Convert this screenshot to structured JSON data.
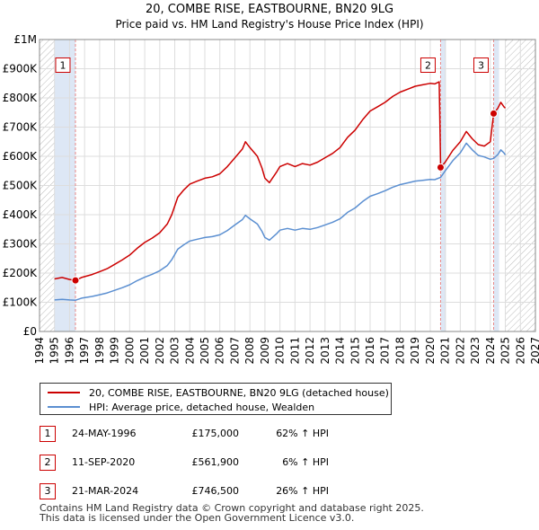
{
  "chart_data": {
    "type": "line",
    "title": "20, COMBE RISE, EASTBOURNE, BN20 9LG",
    "subtitle": "Price paid vs. HM Land Registry's House Price Index (HPI)",
    "xlim": [
      1994,
      2027
    ],
    "ylim": [
      0,
      1000000
    ],
    "x_ticks": [
      1994,
      1995,
      1996,
      1997,
      1998,
      1999,
      2000,
      2001,
      2002,
      2003,
      2004,
      2005,
      2006,
      2007,
      2008,
      2009,
      2010,
      2011,
      2012,
      2013,
      2014,
      2015,
      2016,
      2017,
      2018,
      2019,
      2020,
      2021,
      2022,
      2023,
      2024,
      2025,
      2026,
      2027
    ],
    "y_ticks": [
      {
        "value": 0,
        "label": "£0"
      },
      {
        "value": 100000,
        "label": "£100K"
      },
      {
        "value": 200000,
        "label": "£200K"
      },
      {
        "value": 300000,
        "label": "£300K"
      },
      {
        "value": 400000,
        "label": "£400K"
      },
      {
        "value": 500000,
        "label": "£500K"
      },
      {
        "value": 600000,
        "label": "£600K"
      },
      {
        "value": 700000,
        "label": "£700K"
      },
      {
        "value": 800000,
        "label": "£800K"
      },
      {
        "value": 900000,
        "label": "£900K"
      },
      {
        "value": 1000000,
        "label": "£1M"
      }
    ],
    "data_start": 1995.0,
    "data_end": 2025.0,
    "series": [
      {
        "name": "20, COMBE RISE, EASTBOURNE, BN20 9LG (detached house)",
        "color": "#cc0000",
        "points": [
          [
            1995.0,
            180000
          ],
          [
            1995.5,
            185000
          ],
          [
            1996.0,
            178000
          ],
          [
            1996.4,
            175000
          ],
          [
            1996.8,
            185000
          ],
          [
            1997.5,
            195000
          ],
          [
            1998.0,
            205000
          ],
          [
            1998.5,
            215000
          ],
          [
            1999.0,
            230000
          ],
          [
            1999.5,
            245000
          ],
          [
            2000.0,
            262000
          ],
          [
            2000.5,
            285000
          ],
          [
            2001.0,
            305000
          ],
          [
            2001.5,
            320000
          ],
          [
            2002.0,
            338000
          ],
          [
            2002.5,
            368000
          ],
          [
            2002.8,
            400000
          ],
          [
            2003.2,
            460000
          ],
          [
            2003.6,
            485000
          ],
          [
            2004.0,
            505000
          ],
          [
            2004.5,
            515000
          ],
          [
            2005.0,
            525000
          ],
          [
            2005.5,
            530000
          ],
          [
            2006.0,
            540000
          ],
          [
            2006.5,
            565000
          ],
          [
            2007.0,
            595000
          ],
          [
            2007.5,
            625000
          ],
          [
            2007.7,
            650000
          ],
          [
            2008.0,
            630000
          ],
          [
            2008.5,
            600000
          ],
          [
            2008.8,
            560000
          ],
          [
            2009.0,
            525000
          ],
          [
            2009.3,
            510000
          ],
          [
            2009.8,
            548000
          ],
          [
            2010.0,
            565000
          ],
          [
            2010.5,
            575000
          ],
          [
            2011.0,
            565000
          ],
          [
            2011.5,
            575000
          ],
          [
            2012.0,
            570000
          ],
          [
            2012.5,
            580000
          ],
          [
            2013.0,
            595000
          ],
          [
            2013.5,
            610000
          ],
          [
            2014.0,
            630000
          ],
          [
            2014.5,
            665000
          ],
          [
            2015.0,
            690000
          ],
          [
            2015.5,
            725000
          ],
          [
            2016.0,
            755000
          ],
          [
            2016.5,
            770000
          ],
          [
            2017.0,
            785000
          ],
          [
            2017.5,
            805000
          ],
          [
            2018.0,
            820000
          ],
          [
            2018.5,
            830000
          ],
          [
            2019.0,
            840000
          ],
          [
            2019.5,
            845000
          ],
          [
            2020.0,
            850000
          ],
          [
            2020.3,
            848000
          ],
          [
            2020.6,
            855000
          ],
          [
            2020.69,
            561900
          ],
          [
            2021.0,
            580000
          ],
          [
            2021.5,
            620000
          ],
          [
            2022.0,
            650000
          ],
          [
            2022.4,
            685000
          ],
          [
            2022.8,
            660000
          ],
          [
            2023.2,
            640000
          ],
          [
            2023.6,
            635000
          ],
          [
            2024.0,
            650000
          ],
          [
            2024.22,
            746500
          ],
          [
            2024.5,
            765000
          ],
          [
            2024.7,
            785000
          ],
          [
            2024.9,
            770000
          ],
          [
            2025.0,
            765000
          ]
        ]
      },
      {
        "name": "HPI: Average price, detached house, Wealden",
        "color": "#5b8fd1",
        "points": [
          [
            1995.0,
            108000
          ],
          [
            1995.5,
            110000
          ],
          [
            1996.0,
            108000
          ],
          [
            1996.4,
            107000
          ],
          [
            1996.8,
            114000
          ],
          [
            1997.5,
            120000
          ],
          [
            1998.0,
            126000
          ],
          [
            1998.5,
            132000
          ],
          [
            1999.0,
            141000
          ],
          [
            1999.5,
            150000
          ],
          [
            2000.0,
            160000
          ],
          [
            2000.5,
            174000
          ],
          [
            2001.0,
            186000
          ],
          [
            2001.5,
            196000
          ],
          [
            2002.0,
            208000
          ],
          [
            2002.5,
            226000
          ],
          [
            2002.8,
            246000
          ],
          [
            2003.2,
            282000
          ],
          [
            2003.6,
            297000
          ],
          [
            2004.0,
            310000
          ],
          [
            2004.5,
            316000
          ],
          [
            2005.0,
            322000
          ],
          [
            2005.5,
            325000
          ],
          [
            2006.0,
            331000
          ],
          [
            2006.5,
            346000
          ],
          [
            2007.0,
            365000
          ],
          [
            2007.5,
            383000
          ],
          [
            2007.7,
            398000
          ],
          [
            2008.0,
            386000
          ],
          [
            2008.5,
            368000
          ],
          [
            2008.8,
            343000
          ],
          [
            2009.0,
            322000
          ],
          [
            2009.3,
            313000
          ],
          [
            2009.8,
            336000
          ],
          [
            2010.0,
            347000
          ],
          [
            2010.5,
            353000
          ],
          [
            2011.0,
            347000
          ],
          [
            2011.5,
            353000
          ],
          [
            2012.0,
            350000
          ],
          [
            2012.5,
            356000
          ],
          [
            2013.0,
            365000
          ],
          [
            2013.5,
            374000
          ],
          [
            2014.0,
            386000
          ],
          [
            2014.5,
            408000
          ],
          [
            2015.0,
            423000
          ],
          [
            2015.5,
            445000
          ],
          [
            2016.0,
            463000
          ],
          [
            2016.5,
            472000
          ],
          [
            2017.0,
            482000
          ],
          [
            2017.5,
            494000
          ],
          [
            2018.0,
            503000
          ],
          [
            2018.5,
            509000
          ],
          [
            2019.0,
            515000
          ],
          [
            2019.5,
            518000
          ],
          [
            2020.0,
            521000
          ],
          [
            2020.3,
            520000
          ],
          [
            2020.69,
            528000
          ],
          [
            2021.0,
            550000
          ],
          [
            2021.5,
            585000
          ],
          [
            2022.0,
            612000
          ],
          [
            2022.4,
            645000
          ],
          [
            2022.8,
            622000
          ],
          [
            2023.2,
            603000
          ],
          [
            2023.6,
            598000
          ],
          [
            2024.0,
            590000
          ],
          [
            2024.22,
            593000
          ],
          [
            2024.5,
            606000
          ],
          [
            2024.7,
            622000
          ],
          [
            2024.9,
            612000
          ],
          [
            2025.0,
            605000
          ]
        ]
      }
    ],
    "sales": [
      {
        "id": "1",
        "x": 1996.39,
        "y": 175000
      },
      {
        "id": "2",
        "x": 2020.69,
        "y": 561900
      },
      {
        "id": "3",
        "x": 2024.22,
        "y": 746500
      }
    ]
  },
  "legend": {
    "property_label": "20, COMBE RISE, EASTBOURNE, BN20 9LG (detached house)",
    "hpi_label": "HPI: Average price, detached house, Wealden"
  },
  "transactions": [
    {
      "id": "1",
      "date": "24-MAY-1996",
      "price": "£175,000",
      "hpi": "62% ↑ HPI"
    },
    {
      "id": "2",
      "date": "11-SEP-2020",
      "price": "£561,900",
      "hpi": "6% ↑ HPI"
    },
    {
      "id": "3",
      "date": "21-MAR-2024",
      "price": "£746,500",
      "hpi": "26% ↑ HPI"
    }
  ],
  "footer": {
    "line1": "Contains HM Land Registry data © Crown copyright and database right 2025.",
    "line2": "This data is licensed under the Open Government Licence v3.0."
  },
  "colors": {
    "property": "#cc0000",
    "hpi": "#5b8fd1",
    "shade": "#dde7f5",
    "hatch": "#bbbbbb",
    "grid": "#dddddd",
    "marker_line": "#e88888"
  }
}
